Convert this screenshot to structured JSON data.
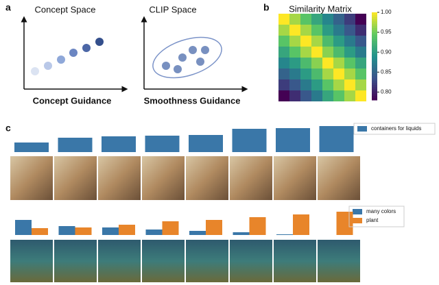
{
  "panel_labels": [
    "a",
    "b",
    "c"
  ],
  "concept_space": {
    "title": "Concept Space",
    "caption": "Concept Guidance"
  },
  "clip_space": {
    "title": "CLIP Space",
    "caption": "Smoothness Guidance"
  },
  "chart_data": [
    {
      "type": "heatmap",
      "title": "Similarity Matrix",
      "values": [
        [
          1.0,
          0.97,
          0.94,
          0.91,
          0.88,
          0.85,
          0.82,
          0.78
        ],
        [
          0.97,
          1.0,
          0.97,
          0.94,
          0.9,
          0.87,
          0.84,
          0.81
        ],
        [
          0.94,
          0.97,
          1.0,
          0.97,
          0.93,
          0.9,
          0.87,
          0.84
        ],
        [
          0.91,
          0.94,
          0.97,
          1.0,
          0.96,
          0.93,
          0.9,
          0.87
        ],
        [
          0.88,
          0.9,
          0.93,
          0.96,
          1.0,
          0.97,
          0.94,
          0.91
        ],
        [
          0.85,
          0.87,
          0.9,
          0.93,
          0.97,
          1.0,
          0.97,
          0.94
        ],
        [
          0.82,
          0.84,
          0.87,
          0.9,
          0.94,
          0.97,
          1.0,
          0.97
        ],
        [
          0.78,
          0.81,
          0.84,
          0.87,
          0.91,
          0.94,
          0.97,
          1.0
        ]
      ],
      "zlim": [
        0.78,
        1.0
      ],
      "zticks": [
        {
          "value": 0.8,
          "label": "0.80"
        },
        {
          "value": 0.85,
          "label": "0.85"
        },
        {
          "value": 0.9,
          "label": "0.90"
        },
        {
          "value": 0.95,
          "label": "0.95"
        },
        {
          "value": 1.0,
          "label": "1.00"
        }
      ]
    },
    {
      "type": "bar",
      "series": [
        {
          "name": "containers for liquids",
          "color": "#3a77a8",
          "values": [
            14,
            21,
            23,
            24,
            25,
            34,
            35,
            38
          ]
        }
      ]
    },
    {
      "type": "bar",
      "series": [
        {
          "name": "many colors",
          "color": "#3a77a8",
          "values": [
            22,
            13,
            11,
            8,
            6,
            4,
            1,
            0
          ]
        },
        {
          "name": "plant",
          "color": "#e8852a",
          "values": [
            10,
            11,
            15,
            20,
            22,
            26,
            30,
            34
          ]
        }
      ]
    }
  ]
}
